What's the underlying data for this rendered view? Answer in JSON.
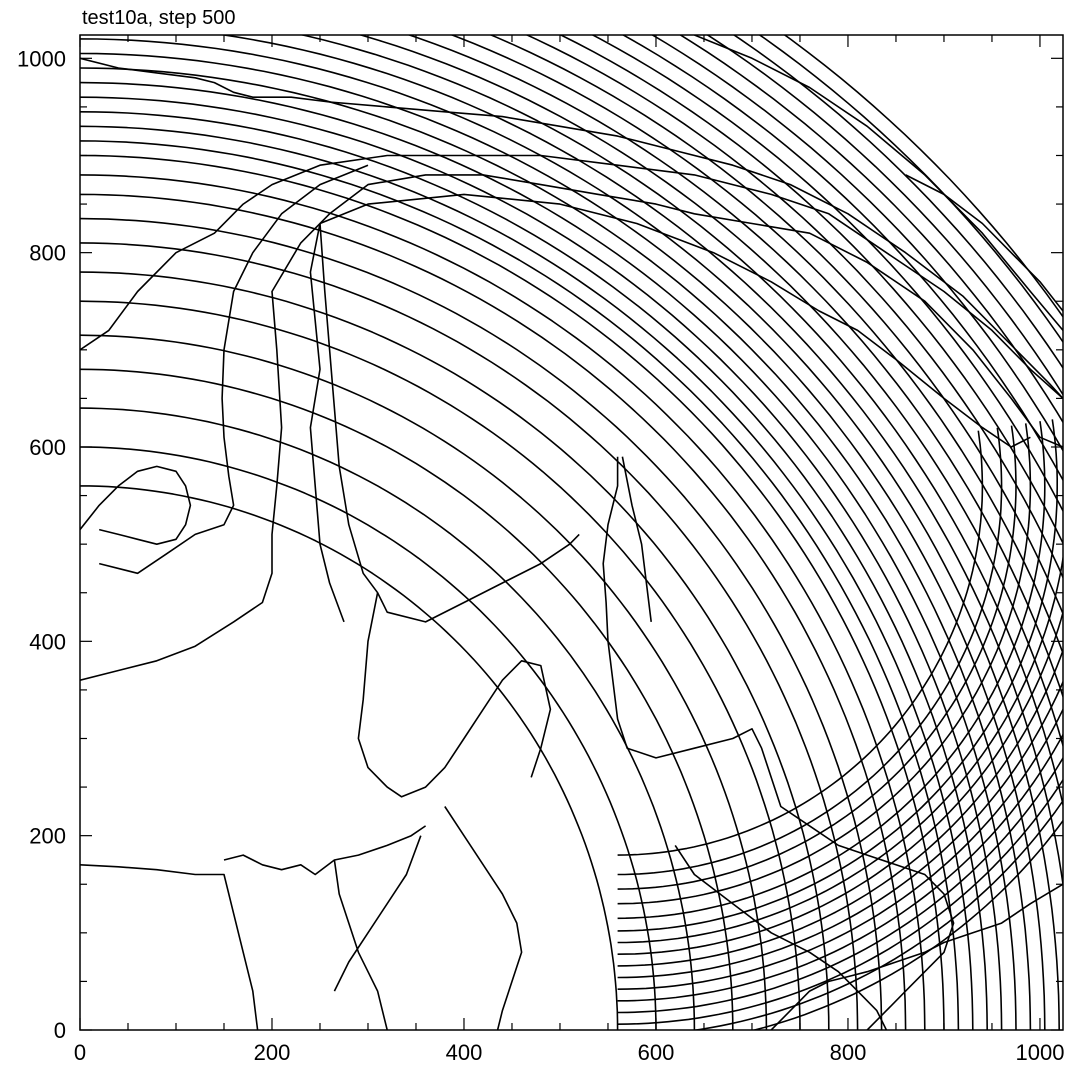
{
  "chart_data": {
    "type": "contour",
    "title": "test10a, step 500",
    "xlabel": "",
    "ylabel": "",
    "xlim": [
      0,
      1024
    ],
    "ylim": [
      0,
      1024
    ],
    "grid": false,
    "x_major_ticks": [
      0,
      200,
      400,
      600,
      800,
      1000
    ],
    "y_major_ticks": [
      0,
      200,
      400,
      600,
      800,
      1000
    ],
    "x_tick_labels": [
      "0",
      "200",
      "400",
      "600",
      "800",
      "1000"
    ],
    "y_tick_labels": [
      "0",
      "200",
      "400",
      "600",
      "800",
      "1000"
    ],
    "minor_tick_step": 50,
    "line_color": "#000000",
    "contour_families": {
      "circular_arcs": {
        "center": [
          0,
          0
        ],
        "radii": [
          560,
          600,
          640,
          680,
          715,
          750,
          780,
          810,
          835,
          860,
          880,
          900,
          915,
          930,
          945,
          960,
          975,
          990,
          1005,
          1020,
          1035,
          1050,
          1065,
          1080,
          1095,
          1110,
          1125,
          1140,
          1155,
          1170,
          1185,
          1200,
          1215,
          1230,
          1245,
          1260
        ]
      },
      "lower_right_arcs": {
        "center": [
          560,
          560
        ],
        "radii": [
          380,
          400,
          415,
          430,
          445,
          458,
          470,
          482,
          494,
          506,
          518,
          530,
          542,
          554,
          566,
          578
        ]
      }
    },
    "contour_lines": [
      [
        [
          640,
          1024
        ],
        [
          700,
          1000
        ],
        [
          760,
          970
        ],
        [
          820,
          930
        ],
        [
          880,
          880
        ],
        [
          940,
          820
        ],
        [
          990,
          760
        ],
        [
          1024,
          720
        ]
      ],
      [
        [
          250,
          830
        ],
        [
          300,
          850
        ],
        [
          400,
          860
        ],
        [
          500,
          850
        ],
        [
          580,
          830
        ],
        [
          660,
          800
        ],
        [
          720,
          770
        ],
        [
          770,
          740
        ],
        [
          810,
          720
        ],
        [
          850,
          690
        ],
        [
          900,
          650
        ],
        [
          940,
          620
        ],
        [
          970,
          600
        ],
        [
          990,
          610
        ]
      ],
      [
        [
          250,
          830
        ],
        [
          240,
          780
        ],
        [
          245,
          730
        ],
        [
          250,
          680
        ],
        [
          240,
          620
        ],
        [
          245,
          560
        ],
        [
          250,
          500
        ],
        [
          260,
          460
        ],
        [
          275,
          420
        ]
      ],
      [
        [
          250,
          830
        ],
        [
          255,
          760
        ],
        [
          260,
          700
        ],
        [
          265,
          640
        ],
        [
          270,
          580
        ],
        [
          280,
          520
        ],
        [
          295,
          470
        ],
        [
          310,
          450
        ],
        [
          320,
          430
        ],
        [
          360,
          420
        ],
        [
          400,
          440
        ],
        [
          440,
          460
        ],
        [
          480,
          480
        ],
        [
          510,
          500
        ],
        [
          520,
          510
        ]
      ],
      [
        [
          310,
          450
        ],
        [
          300,
          400
        ],
        [
          295,
          340
        ],
        [
          290,
          300
        ],
        [
          300,
          270
        ],
        [
          320,
          250
        ],
        [
          335,
          240
        ],
        [
          360,
          250
        ],
        [
          380,
          270
        ],
        [
          400,
          300
        ],
        [
          420,
          330
        ],
        [
          440,
          360
        ],
        [
          460,
          380
        ],
        [
          480,
          375
        ],
        [
          490,
          330
        ],
        [
          480,
          290
        ],
        [
          470,
          260
        ]
      ],
      [
        [
          560,
          590
        ],
        [
          560,
          560
        ],
        [
          550,
          520
        ],
        [
          545,
          480
        ],
        [
          548,
          440
        ],
        [
          550,
          400
        ],
        [
          555,
          360
        ],
        [
          560,
          320
        ],
        [
          570,
          290
        ],
        [
          600,
          280
        ],
        [
          640,
          290
        ],
        [
          680,
          300
        ],
        [
          700,
          310
        ],
        [
          710,
          290
        ],
        [
          720,
          260
        ],
        [
          730,
          230
        ],
        [
          760,
          210
        ],
        [
          790,
          190
        ],
        [
          820,
          180
        ],
        [
          850,
          170
        ],
        [
          880,
          160
        ],
        [
          900,
          140
        ],
        [
          910,
          110
        ],
        [
          900,
          80
        ],
        [
          880,
          60
        ],
        [
          860,
          40
        ],
        [
          840,
          20
        ],
        [
          820,
          0
        ]
      ],
      [
        [
          565,
          590
        ],
        [
          575,
          540
        ],
        [
          585,
          500
        ],
        [
          590,
          460
        ],
        [
          595,
          420
        ]
      ],
      [
        [
          620,
          190
        ],
        [
          640,
          160
        ],
        [
          680,
          130
        ],
        [
          720,
          100
        ],
        [
          760,
          80
        ],
        [
          790,
          60
        ],
        [
          810,
          40
        ],
        [
          830,
          20
        ],
        [
          840,
          0
        ]
      ],
      [
        [
          0,
          360
        ],
        [
          40,
          370
        ],
        [
          80,
          380
        ],
        [
          120,
          395
        ],
        [
          160,
          420
        ],
        [
          190,
          440
        ],
        [
          200,
          470
        ],
        [
          200,
          510
        ],
        [
          205,
          560
        ],
        [
          210,
          620
        ],
        [
          205,
          700
        ],
        [
          200,
          760
        ],
        [
          230,
          810
        ],
        [
          260,
          840
        ],
        [
          300,
          870
        ],
        [
          360,
          880
        ],
        [
          420,
          880
        ],
        [
          480,
          870
        ],
        [
          540,
          860
        ],
        [
          600,
          850
        ],
        [
          640,
          840
        ],
        [
          700,
          830
        ],
        [
          760,
          820
        ],
        [
          820,
          790
        ],
        [
          880,
          750
        ],
        [
          930,
          700
        ],
        [
          970,
          650
        ],
        [
          1000,
          610
        ],
        [
          1024,
          600
        ]
      ],
      [
        [
          0,
          700
        ],
        [
          30,
          720
        ],
        [
          60,
          760
        ],
        [
          100,
          800
        ],
        [
          140,
          820
        ],
        [
          170,
          850
        ],
        [
          200,
          870
        ],
        [
          250,
          890
        ],
        [
          320,
          900
        ],
        [
          400,
          900
        ],
        [
          480,
          900
        ],
        [
          560,
          890
        ],
        [
          640,
          880
        ],
        [
          720,
          860
        ],
        [
          780,
          840
        ],
        [
          840,
          800
        ],
        [
          900,
          760
        ],
        [
          950,
          720
        ],
        [
          990,
          680
        ],
        [
          1024,
          650
        ]
      ],
      [
        [
          20,
          480
        ],
        [
          60,
          470
        ],
        [
          90,
          490
        ],
        [
          120,
          510
        ],
        [
          150,
          520
        ],
        [
          160,
          540
        ],
        [
          155,
          570
        ],
        [
          150,
          610
        ],
        [
          148,
          650
        ],
        [
          150,
          700
        ],
        [
          160,
          760
        ],
        [
          180,
          800
        ],
        [
          210,
          840
        ],
        [
          250,
          870
        ],
        [
          300,
          890
        ]
      ],
      [
        [
          150,
          175
        ],
        [
          170,
          180
        ],
        [
          190,
          170
        ],
        [
          210,
          165
        ],
        [
          230,
          170
        ],
        [
          245,
          160
        ],
        [
          265,
          175
        ],
        [
          290,
          180
        ],
        [
          320,
          190
        ],
        [
          345,
          200
        ],
        [
          360,
          210
        ]
      ],
      [
        [
          265,
          175
        ],
        [
          270,
          140
        ],
        [
          280,
          110
        ],
        [
          290,
          80
        ],
        [
          300,
          60
        ],
        [
          310,
          40
        ],
        [
          315,
          20
        ],
        [
          320,
          0
        ]
      ],
      [
        [
          0,
          170
        ],
        [
          40,
          168
        ],
        [
          80,
          165
        ],
        [
          120,
          160
        ],
        [
          150,
          160
        ],
        [
          160,
          120
        ],
        [
          170,
          80
        ],
        [
          180,
          40
        ],
        [
          185,
          0
        ]
      ],
      [
        [
          265,
          40
        ],
        [
          280,
          70
        ],
        [
          300,
          100
        ],
        [
          320,
          130
        ],
        [
          340,
          160
        ],
        [
          355,
          200
        ]
      ],
      [
        [
          380,
          230
        ],
        [
          400,
          200
        ],
        [
          420,
          170
        ],
        [
          440,
          140
        ],
        [
          455,
          110
        ],
        [
          460,
          80
        ],
        [
          450,
          50
        ],
        [
          440,
          20
        ],
        [
          435,
          0
        ]
      ],
      [
        [
          720,
          0
        ],
        [
          740,
          20
        ],
        [
          760,
          40
        ],
        [
          780,
          50
        ],
        [
          800,
          55
        ],
        [
          820,
          60
        ],
        [
          850,
          70
        ],
        [
          880,
          80
        ],
        [
          900,
          90
        ],
        [
          930,
          100
        ],
        [
          960,
          110
        ],
        [
          990,
          130
        ],
        [
          1024,
          150
        ]
      ],
      [
        [
          0,
          515
        ],
        [
          20,
          540
        ],
        [
          40,
          560
        ],
        [
          60,
          575
        ],
        [
          80,
          580
        ],
        [
          100,
          575
        ],
        [
          110,
          560
        ],
        [
          115,
          540
        ],
        [
          110,
          520
        ],
        [
          100,
          505
        ],
        [
          80,
          500
        ],
        [
          60,
          505
        ],
        [
          40,
          510
        ],
        [
          20,
          515
        ]
      ],
      [
        [
          860,
          880
        ],
        [
          900,
          860
        ],
        [
          940,
          830
        ],
        [
          970,
          800
        ],
        [
          1000,
          770
        ],
        [
          1024,
          740
        ]
      ],
      [
        [
          0,
          1000
        ],
        [
          40,
          990
        ],
        [
          80,
          985
        ],
        [
          120,
          980
        ],
        [
          140,
          975
        ],
        [
          160,
          965
        ],
        [
          180,
          960
        ],
        [
          220,
          960
        ],
        [
          260,
          955
        ],
        [
          320,
          950
        ],
        [
          380,
          945
        ],
        [
          440,
          940
        ],
        [
          500,
          930
        ],
        [
          560,
          920
        ],
        [
          620,
          905
        ],
        [
          680,
          890
        ],
        [
          740,
          870
        ],
        [
          800,
          840
        ],
        [
          860,
          800
        ],
        [
          920,
          755
        ],
        [
          970,
          705
        ],
        [
          1010,
          665
        ],
        [
          1024,
          650
        ]
      ]
    ]
  }
}
